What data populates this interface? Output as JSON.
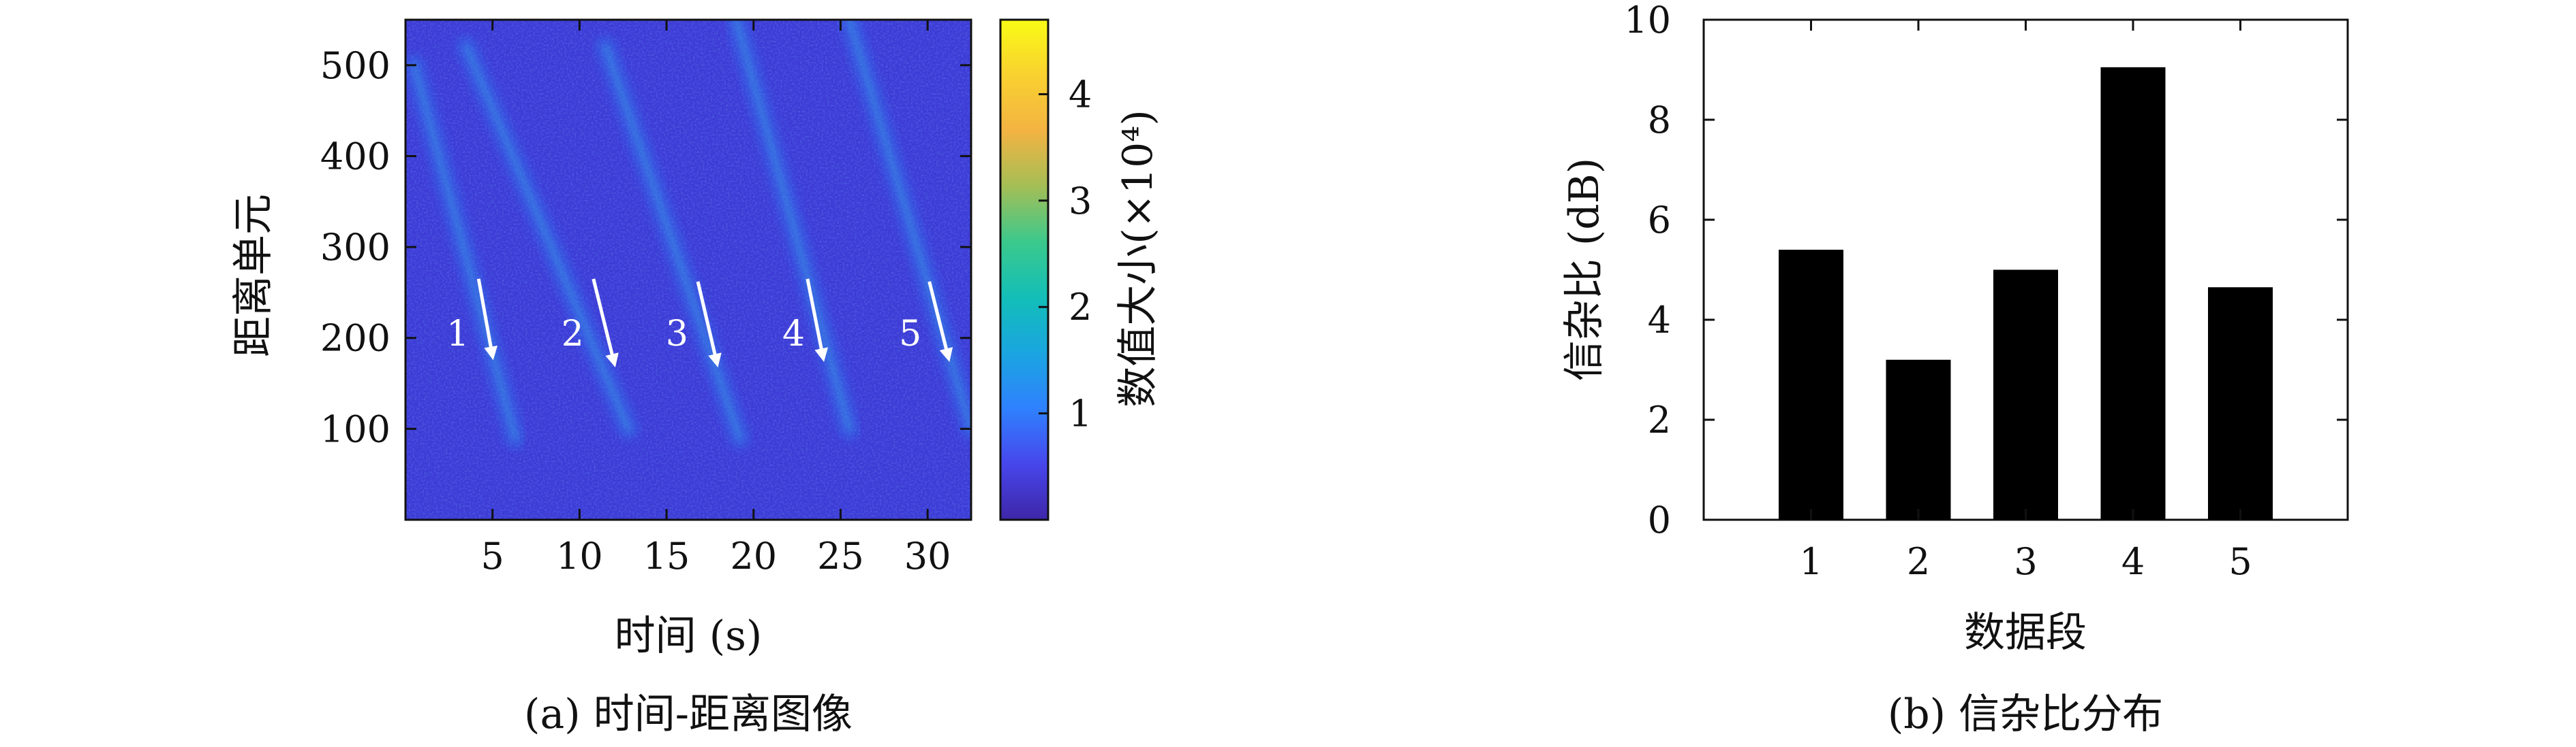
{
  "chart_data": [
    {
      "type": "heatmap",
      "caption": "(a) 时间-距离图像",
      "xlabel": "时间 (s)",
      "ylabel": "距离单元",
      "x_ticks": [
        "5",
        "10",
        "15",
        "20",
        "25",
        "30"
      ],
      "y_ticks": [
        "100",
        "200",
        "300",
        "400",
        "500"
      ],
      "xlim": [
        0,
        32.5
      ],
      "ylim": [
        0,
        550
      ],
      "colorbar": {
        "label": "数值大小(×10⁴)",
        "ticks": [
          "1",
          "2",
          "3",
          "4"
        ],
        "range": [
          0,
          4.7
        ],
        "colormap": [
          "#3e26a8",
          "#4746eb",
          "#2f81fe",
          "#1aa5e0",
          "#13beb8",
          "#3bc98c",
          "#a4be56",
          "#f3b342",
          "#f9d130",
          "#f9fb15"
        ]
      },
      "background_color": "#3d3bd6",
      "tracks": [
        {
          "label": "1",
          "time_start": 0.5,
          "range_start": 500,
          "time_end": 6.3,
          "range_end": 90
        },
        {
          "label": "2",
          "time_start": 3.5,
          "range_start": 520,
          "time_end": 12.8,
          "range_end": 100
        },
        {
          "label": "3",
          "time_start": 11.5,
          "range_start": 520,
          "time_end": 19.2,
          "range_end": 90
        },
        {
          "label": "4",
          "time_start": 19.0,
          "range_start": 550,
          "time_end": 25.5,
          "range_end": 100
        },
        {
          "label": "5",
          "time_start": 25.5,
          "range_start": 550,
          "time_end": 32.5,
          "range_end": 100
        }
      ],
      "annotations": [
        {
          "label": "1",
          "time": 3.0,
          "range": 205,
          "arrow_from": [
            4.2,
            265
          ],
          "arrow_to": [
            5.0,
            180
          ]
        },
        {
          "label": "2",
          "time": 9.6,
          "range": 205,
          "arrow_from": [
            10.8,
            265
          ],
          "arrow_to": [
            12.0,
            172
          ]
        },
        {
          "label": "3",
          "time": 15.6,
          "range": 205,
          "arrow_from": [
            16.8,
            262
          ],
          "arrow_to": [
            17.9,
            172
          ]
        },
        {
          "label": "4",
          "time": 22.3,
          "range": 205,
          "arrow_from": [
            23.1,
            265
          ],
          "arrow_to": [
            24.0,
            178
          ]
        },
        {
          "label": "5",
          "time": 29.0,
          "range": 205,
          "arrow_from": [
            30.1,
            262
          ],
          "arrow_to": [
            31.2,
            178
          ]
        }
      ]
    },
    {
      "type": "bar",
      "caption": "(b) 信杂比分布",
      "xlabel": "数据段",
      "ylabel": "信杂比 (dB)",
      "categories": [
        "1",
        "2",
        "3",
        "4",
        "5"
      ],
      "values": [
        5.4,
        3.2,
        5.0,
        9.05,
        4.65
      ],
      "ylim": [
        0,
        10
      ],
      "y_ticks": [
        "0",
        "2",
        "4",
        "6",
        "8",
        "10"
      ],
      "bar_color": "#000000"
    }
  ]
}
